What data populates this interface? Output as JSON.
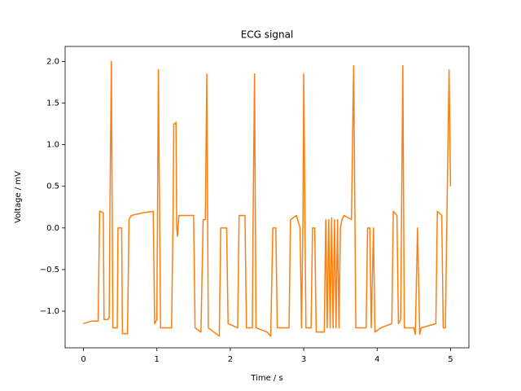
{
  "chart_data": {
    "type": "line",
    "title": "ECG signal",
    "x_label": "Time / s",
    "y_label": "Voltage / mV",
    "color": "#ff7f0e",
    "grid": false,
    "xlim": [
      -0.25,
      5.25
    ],
    "ylim": [
      -1.44,
      2.18
    ],
    "xticks": [
      0,
      1,
      2,
      3,
      4,
      5
    ],
    "yticks": [
      {
        "value": -1,
        "label": "−1.0"
      },
      {
        "value": -0.5,
        "label": "−0.5"
      },
      {
        "value": 0,
        "label": "0.0"
      },
      0.5,
      {
        "value": 1,
        "label": "1.0"
      },
      1.5,
      {
        "value": 2,
        "label": "2.0"
      }
    ],
    "x": [
      0,
      0.1,
      0.2,
      0.22,
      0.23,
      0.27,
      0.28,
      0.33,
      0.35,
      0.36,
      0.38,
      0.4,
      0.46,
      0.47,
      0.52,
      0.53,
      0.6,
      0.62,
      0.65,
      0.8,
      0.95,
      0.97,
      1.0,
      1.02,
      1.05,
      1.2,
      1.22,
      1.23,
      1.25,
      1.26,
      1.27,
      1.28,
      1.3,
      1.5,
      1.52,
      1.6,
      1.63,
      1.66,
      1.68,
      1.7,
      1.85,
      1.87,
      1.95,
      1.97,
      2.1,
      2.12,
      2.2,
      2.22,
      2.3,
      2.31,
      2.33,
      2.35,
      2.5,
      2.55,
      2.58,
      2.62,
      2.64,
      2.8,
      2.82,
      2.9,
      2.95,
      2.97,
      2.99,
      3.0,
      3.03,
      3.1,
      3.12,
      3.15,
      3.17,
      3.28,
      3.3,
      3.32,
      3.34,
      3.36,
      3.38,
      3.4,
      3.42,
      3.44,
      3.46,
      3.48,
      3.5,
      3.52,
      3.55,
      3.65,
      3.68,
      3.71,
      3.85,
      3.87,
      3.9,
      3.92,
      3.95,
      3.97,
      4.05,
      4.2,
      4.22,
      4.27,
      4.29,
      4.32,
      4.35,
      4.37,
      4.5,
      4.52,
      4.55,
      4.58,
      4.6,
      4.8,
      4.82,
      4.88,
      4.9,
      4.93,
      4.95,
      4.98,
      5.0
    ],
    "values": [
      -1.15,
      -1.12,
      -1.12,
      0.2,
      0.2,
      0.18,
      -1.1,
      -1.1,
      -1.08,
      0.2,
      2.0,
      -1.2,
      -1.2,
      0,
      0,
      -1.27,
      -1.27,
      0.1,
      0.15,
      0.18,
      0.2,
      -1.15,
      -1.1,
      1.9,
      -1.2,
      -1.2,
      0.1,
      1.25,
      1.25,
      1.27,
      0,
      -0.1,
      0.15,
      0.15,
      -1.2,
      -1.25,
      0.1,
      0.1,
      1.85,
      -1.2,
      -1.3,
      0,
      0,
      -1.15,
      -1.2,
      0.15,
      0.15,
      -1.2,
      -1.2,
      0.1,
      1.85,
      -1.2,
      -1.25,
      -1.3,
      0,
      0,
      -1.2,
      -1.2,
      0.1,
      0.15,
      0,
      -1.2,
      0.1,
      1.85,
      -1.2,
      -1.2,
      0,
      0,
      -1.25,
      -1.25,
      0.1,
      -1.2,
      0.1,
      -1.2,
      0.12,
      -1.2,
      0.1,
      -1.2,
      0.1,
      -1.2,
      0,
      0.1,
      0.15,
      0.1,
      1.95,
      -1.2,
      -1.2,
      0,
      0,
      -1.2,
      0,
      -1.25,
      -1.2,
      -1.15,
      0.2,
      0.15,
      -1.15,
      -1.1,
      1.95,
      -1.2,
      -1.2,
      -1.28,
      0,
      -1.28,
      -1.2,
      -1.15,
      0.2,
      0.15,
      -1.2,
      -1.2,
      0.1,
      1.9,
      0.5
    ]
  }
}
